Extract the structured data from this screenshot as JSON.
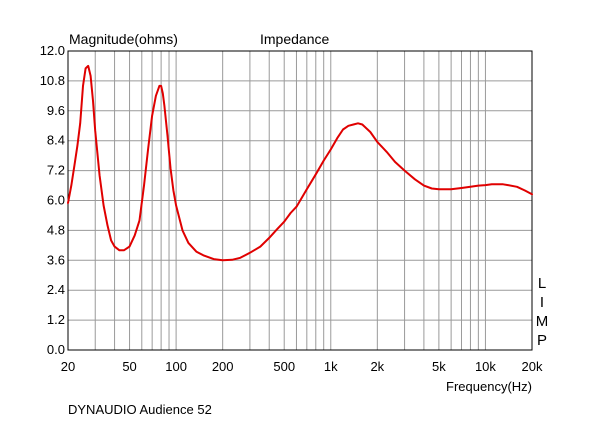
{
  "chart_data": {
    "type": "line",
    "title": "Impedance",
    "ylabel": "Magnitude(ohms)",
    "xlabel": "Frequency(Hz)",
    "caption": "DYNAUDIO Audience 52",
    "side_label": "LIMP",
    "x_scale": "log",
    "xlim": [
      20,
      20000
    ],
    "ylim": [
      0,
      12
    ],
    "grid": true,
    "y_ticks": [
      "0.0",
      "1.2",
      "2.4",
      "3.6",
      "4.8",
      "6.0",
      "7.2",
      "8.4",
      "9.6",
      "10.8",
      "12.0"
    ],
    "x_ticks": [
      {
        "label": "20",
        "value": 20
      },
      {
        "label": "50",
        "value": 50
      },
      {
        "label": "100",
        "value": 100
      },
      {
        "label": "200",
        "value": 200
      },
      {
        "label": "500",
        "value": 500
      },
      {
        "label": "1k",
        "value": 1000
      },
      {
        "label": "2k",
        "value": 2000
      },
      {
        "label": "5k",
        "value": 5000
      },
      {
        "label": "10k",
        "value": 10000
      },
      {
        "label": "20k",
        "value": 20000
      }
    ],
    "series": [
      {
        "color": "#e00000",
        "x": [
          20,
          21,
          22,
          23,
          24,
          25,
          26,
          27,
          28,
          29,
          30,
          32,
          34,
          36,
          38,
          40,
          43,
          46,
          50,
          54,
          58,
          62,
          66,
          70,
          74,
          78,
          80,
          82,
          84,
          88,
          92,
          96,
          100,
          110,
          120,
          135,
          150,
          175,
          200,
          230,
          260,
          300,
          350,
          400,
          450,
          500,
          550,
          600,
          700,
          800,
          900,
          1000,
          1100,
          1200,
          1300,
          1400,
          1500,
          1600,
          1800,
          2000,
          2300,
          2600,
          3000,
          3500,
          4000,
          4500,
          5000,
          6000,
          7000,
          8000,
          9000,
          10000,
          11000,
          12000,
          13000,
          14000,
          16000,
          18000,
          20000
        ],
        "y": [
          5.9,
          6.6,
          7.4,
          8.2,
          9.1,
          10.6,
          11.3,
          11.4,
          11.0,
          10.0,
          8.8,
          7.0,
          5.8,
          5.0,
          4.4,
          4.15,
          4.0,
          4.0,
          4.15,
          4.6,
          5.2,
          6.6,
          8.1,
          9.4,
          10.2,
          10.6,
          10.6,
          10.3,
          9.8,
          8.6,
          7.3,
          6.4,
          5.8,
          4.8,
          4.3,
          3.95,
          3.8,
          3.65,
          3.6,
          3.62,
          3.7,
          3.9,
          4.15,
          4.5,
          4.85,
          5.15,
          5.5,
          5.75,
          6.45,
          7.05,
          7.6,
          8.05,
          8.5,
          8.85,
          9.0,
          9.05,
          9.1,
          9.05,
          8.75,
          8.35,
          7.95,
          7.55,
          7.2,
          6.85,
          6.6,
          6.48,
          6.45,
          6.45,
          6.5,
          6.55,
          6.6,
          6.62,
          6.65,
          6.65,
          6.65,
          6.62,
          6.55,
          6.4,
          6.25
        ]
      }
    ]
  }
}
